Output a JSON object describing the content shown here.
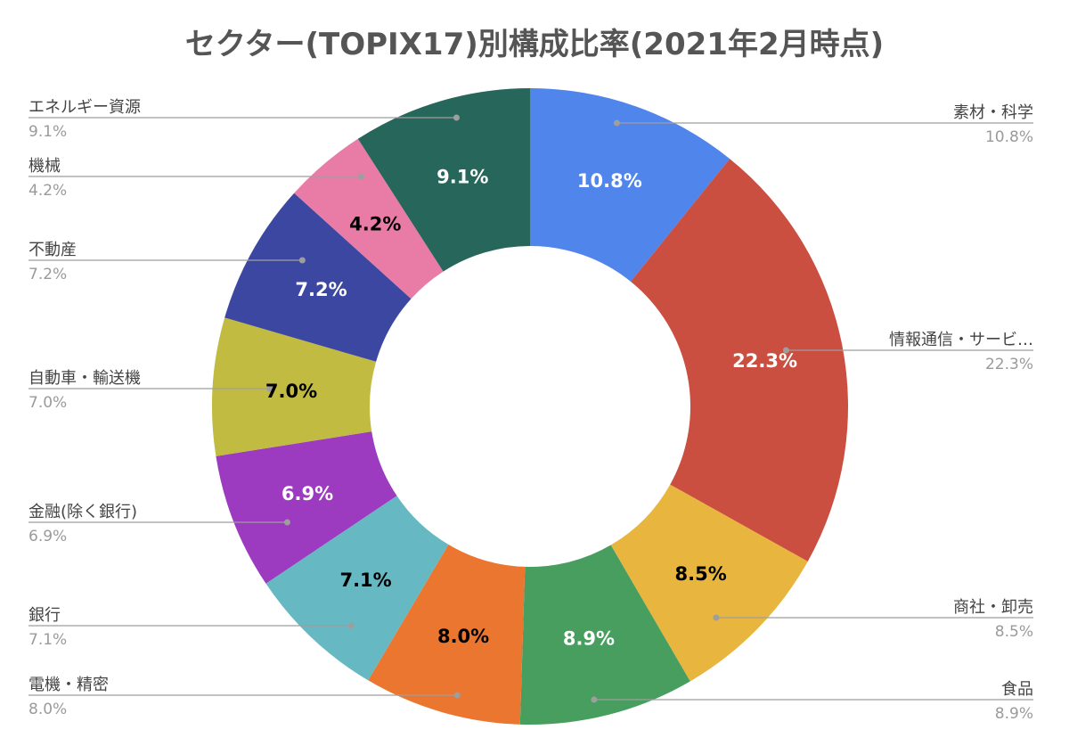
{
  "chart_data": {
    "type": "pie",
    "donut": true,
    "title": "セクター(TOPIX17)別構成比率(2021年2月時点)",
    "slices": [
      {
        "label": "素材・科学",
        "legend_label": "素材・科学",
        "value": 10.8,
        "pct_text": "10.8%",
        "color": "#5085EC",
        "text_color": "#ffffff"
      },
      {
        "label": "情報通信・サービス",
        "legend_label": "情報通信・サービ…",
        "value": 22.3,
        "pct_text": "22.3%",
        "color": "#CB4F40",
        "text_color": "#ffffff"
      },
      {
        "label": "商社・卸売",
        "legend_label": "商社・卸売",
        "value": 8.5,
        "pct_text": "8.5%",
        "color": "#E8B63E",
        "text_color": "#000000"
      },
      {
        "label": "食品",
        "legend_label": "食品",
        "value": 8.9,
        "pct_text": "8.9%",
        "color": "#479E5F",
        "text_color": "#ffffff"
      },
      {
        "label": "電機・精密",
        "legend_label": "電機・精密",
        "value": 8.0,
        "pct_text": "8.0%",
        "color": "#EB7630",
        "text_color": "#000000"
      },
      {
        "label": "銀行",
        "legend_label": "銀行",
        "value": 7.1,
        "pct_text": "7.1%",
        "color": "#66B9C2",
        "text_color": "#000000"
      },
      {
        "label": "金融(除く銀行)",
        "legend_label": "金融(除く銀行)",
        "value": 6.9,
        "pct_text": "6.9%",
        "color": "#9C3AC0",
        "text_color": "#ffffff"
      },
      {
        "label": "自動車・輸送機",
        "legend_label": "自動車・輸送機",
        "value": 7.0,
        "pct_text": "7.0%",
        "color": "#C2BB42",
        "text_color": "#000000"
      },
      {
        "label": "不動産",
        "legend_label": "不動産",
        "value": 7.2,
        "pct_text": "7.2%",
        "color": "#3C47A2",
        "text_color": "#ffffff"
      },
      {
        "label": "機械",
        "legend_label": "機械",
        "value": 4.2,
        "pct_text": "4.2%",
        "color": "#E97CA6",
        "text_color": "#000000"
      },
      {
        "label": "エネルギー資源",
        "legend_label": "エネルギー資源",
        "value": 9.1,
        "pct_text": "9.1%",
        "color": "#27665A",
        "text_color": "#ffffff"
      }
    ]
  }
}
